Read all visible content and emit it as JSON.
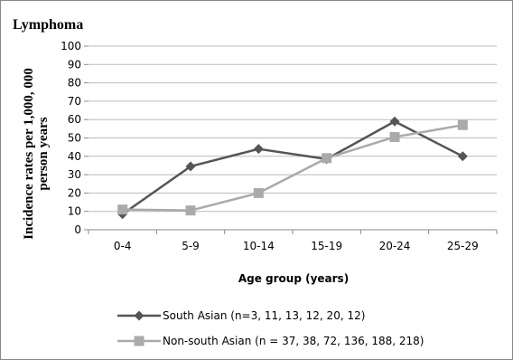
{
  "chart_data": {
    "type": "line",
    "title": "Lymphoma",
    "xlabel": "Age group (years)",
    "ylabel": "Incidence rates per 1,000, 000 person years",
    "ylabel_lines": [
      "Incidence rates per 1,000, 000",
      "person years"
    ],
    "categories": [
      "0-4",
      "5-9",
      "10-14",
      "15-19",
      "20-24",
      "25-29"
    ],
    "ylim": [
      0,
      100
    ],
    "yticks": [
      0,
      10,
      20,
      30,
      40,
      50,
      60,
      70,
      80,
      90,
      100
    ],
    "grid": true,
    "legend_position": "bottom",
    "series": [
      {
        "name": "South Asian (n=3, 11, 13, 12, 20, 12)",
        "values": [
          8.5,
          34.5,
          44,
          38.5,
          59,
          40
        ],
        "color": "#555555",
        "marker": "diamond"
      },
      {
        "name": "Non-south Asian (n = 37, 38, 72, 136, 188, 218)",
        "values": [
          11,
          10.5,
          20,
          39,
          50.5,
          57
        ],
        "color": "#aaaaaa",
        "marker": "square"
      }
    ]
  }
}
